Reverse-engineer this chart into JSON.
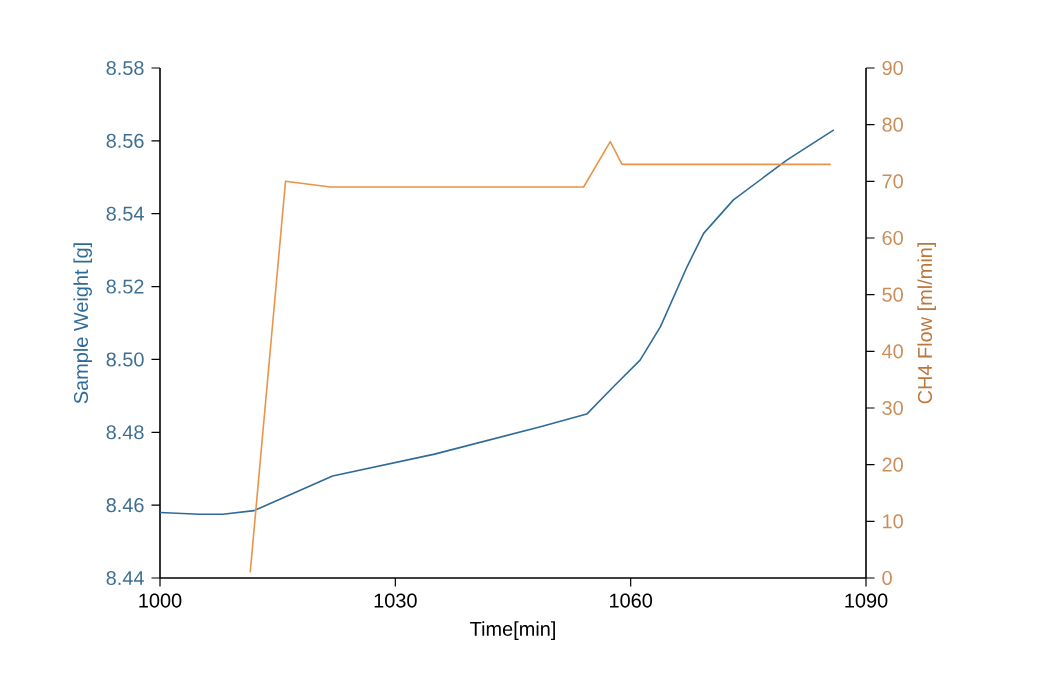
{
  "chart_data": {
    "type": "line",
    "xlabel": "Time[min]",
    "ylabel": "Sample Weight [g]",
    "y2label": "CH4 Flow [ml/min]",
    "xlim": [
      1000,
      1090
    ],
    "xticks": [
      1000,
      1030,
      1060,
      1090
    ],
    "ylim": [
      8.44,
      8.58
    ],
    "yticks": [
      8.44,
      8.46,
      8.48,
      {
        "value": 8.5,
        "label": "8.50"
      },
      8.52,
      8.54,
      8.56,
      8.58
    ],
    "y2lim": [
      0,
      90
    ],
    "y2ticks": [
      0,
      10,
      20,
      30,
      40,
      50,
      60,
      70,
      80,
      90
    ],
    "grid": false,
    "legend": false,
    "marker": "none",
    "line_style": "solid",
    "series": [
      {
        "color": "#2e6b96",
        "x": [
          1000,
          1005,
          1008,
          1012,
          1022,
          1035,
          1048.5,
          1054.4,
          1057.8,
          1061.2,
          1063.8,
          1067.2,
          1069.3,
          1073.1,
          1079.9,
          1085.9
        ],
        "values": [
          8.458,
          8.4575,
          8.4575,
          8.4585,
          8.468,
          8.474,
          8.4815,
          8.485,
          8.4925,
          8.4998,
          8.509,
          8.5255,
          8.5346,
          8.5438,
          8.5547,
          8.563
        ]
      },
      {
        "color": "#e8944a",
        "axis": "y2",
        "x": [
          1011.5,
          1016,
          1021.7,
          1054,
          1057.4,
          1058.9,
          1085.5
        ],
        "values": [
          1,
          70,
          69,
          69,
          77,
          73,
          73
        ]
      }
    ]
  }
}
